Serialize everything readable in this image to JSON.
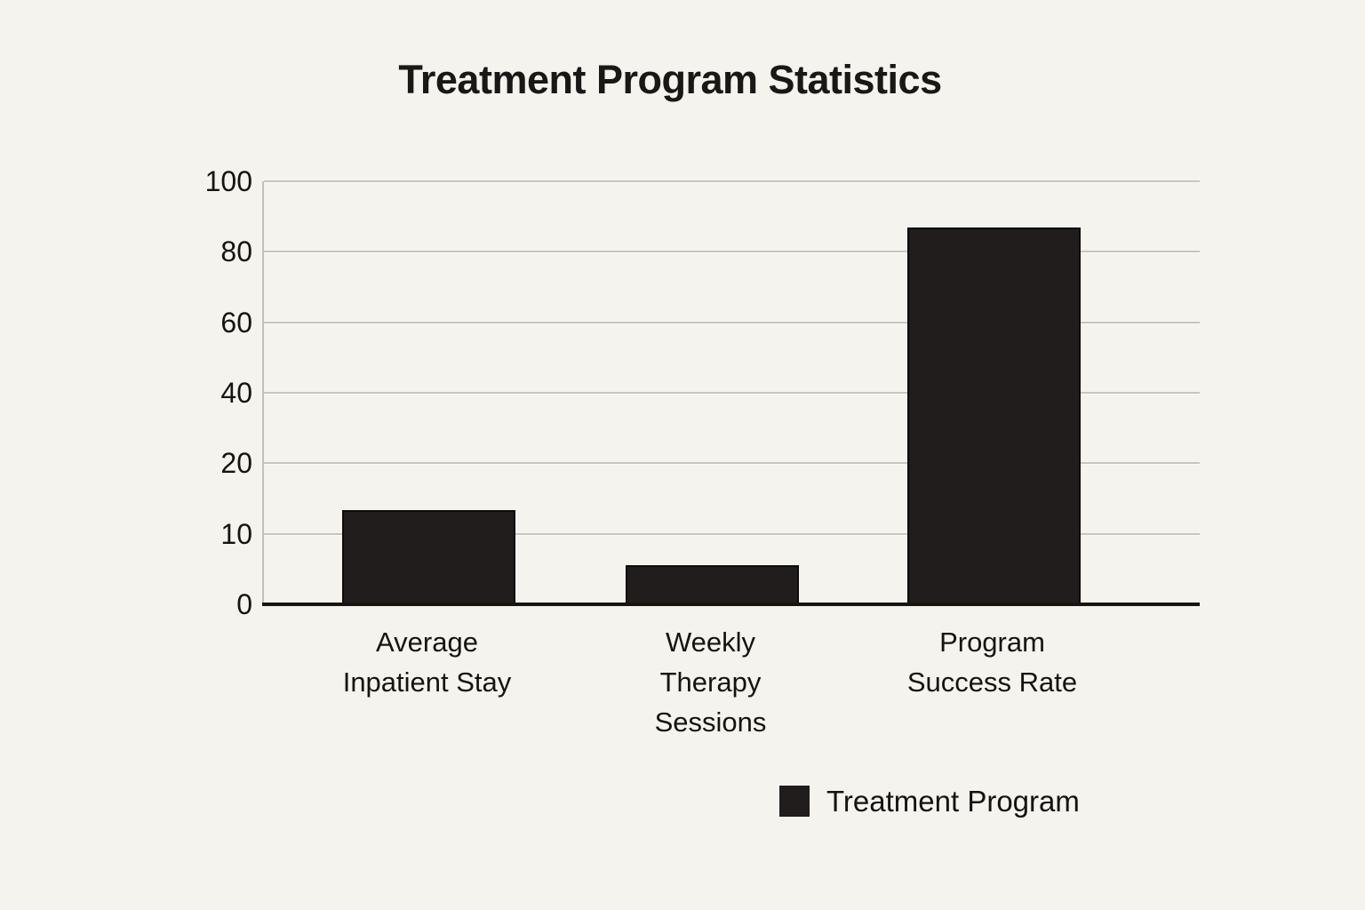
{
  "title": "Treatment Program Statistics",
  "chart_data": {
    "type": "bar",
    "title": "Treatment Program Statistics",
    "categories": [
      "Average Inpatient Stay",
      "Weekly Therapy Sessions",
      "Program Success Rate"
    ],
    "category_lines": [
      [
        "Average",
        "Inpatient Stay"
      ],
      [
        "Weekly",
        "Therapy",
        "Sessions"
      ],
      [
        "Program",
        "Success Rate"
      ]
    ],
    "series": [
      {
        "name": "Treatment Program",
        "values": [
          13.4,
          5.5,
          87
        ]
      }
    ],
    "y_ticks": [
      0,
      10,
      20,
      40,
      60,
      80,
      100
    ],
    "ylim": [
      0,
      100
    ],
    "axis_note": "y-axis ticks are evenly spaced despite uneven values (non-linear scale)",
    "grid": "horizontal gridlines on",
    "legend": {
      "position": "bottom-center-right",
      "entries": [
        {
          "label": "Treatment Program",
          "color": "#201d1c"
        }
      ]
    },
    "colors": {
      "background": "#f5f3ed",
      "bar": "#201d1c",
      "bar_border": "#0e0c0b",
      "gridline": "#c8c5bf",
      "axis_line": "#171411",
      "text": "#191715"
    }
  }
}
